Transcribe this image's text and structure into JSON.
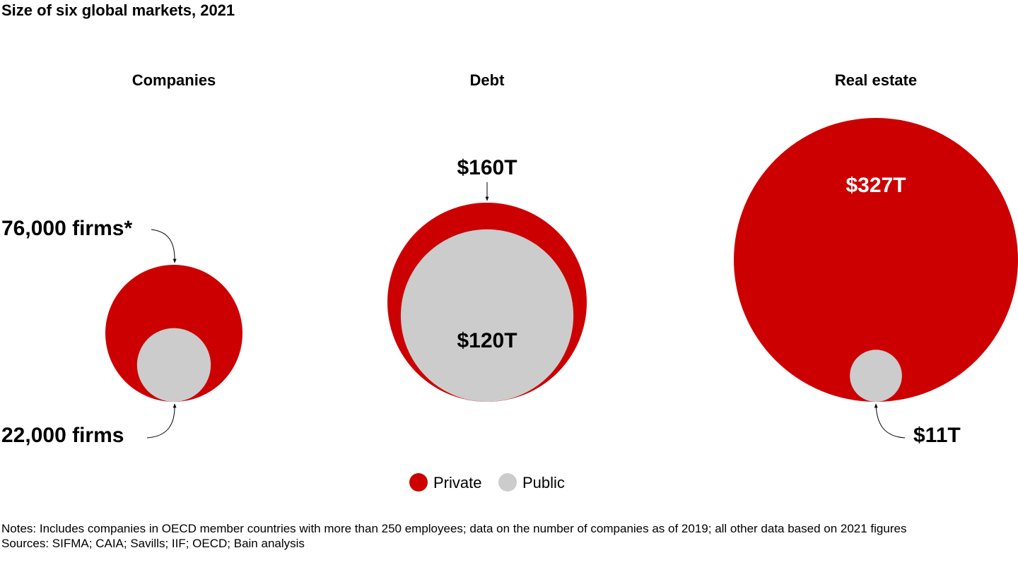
{
  "chart_data": {
    "type": "bubble",
    "title": "Size of six global markets, 2021",
    "panels": [
      {
        "name": "Companies",
        "series": [
          {
            "name": "Private",
            "value": 76000,
            "label": "76,000 firms*"
          },
          {
            "name": "Public",
            "value": 22000,
            "label": "22,000 firms"
          }
        ]
      },
      {
        "name": "Debt",
        "series": [
          {
            "name": "Private",
            "value": 160,
            "label": "$160T"
          },
          {
            "name": "Public",
            "value": 120,
            "label": "$120T"
          }
        ]
      },
      {
        "name": "Real estate",
        "series": [
          {
            "name": "Private",
            "value": 327,
            "label": "$327T"
          },
          {
            "name": "Public",
            "value": 11,
            "label": "$11T"
          }
        ]
      }
    ],
    "legend": {
      "position": "bottom-center",
      "entries": [
        {
          "name": "Private",
          "color": "#cc0000"
        },
        {
          "name": "Public",
          "color": "#cccccc"
        }
      ]
    }
  },
  "notes": "Notes: Includes companies in OECD member countries with more than 250 employees; data on the number of companies as of 2019; all other data based on 2021 figures",
  "sources": "Sources: SIFMA; CAIA; Savills; IIF; OECD; Bain analysis"
}
